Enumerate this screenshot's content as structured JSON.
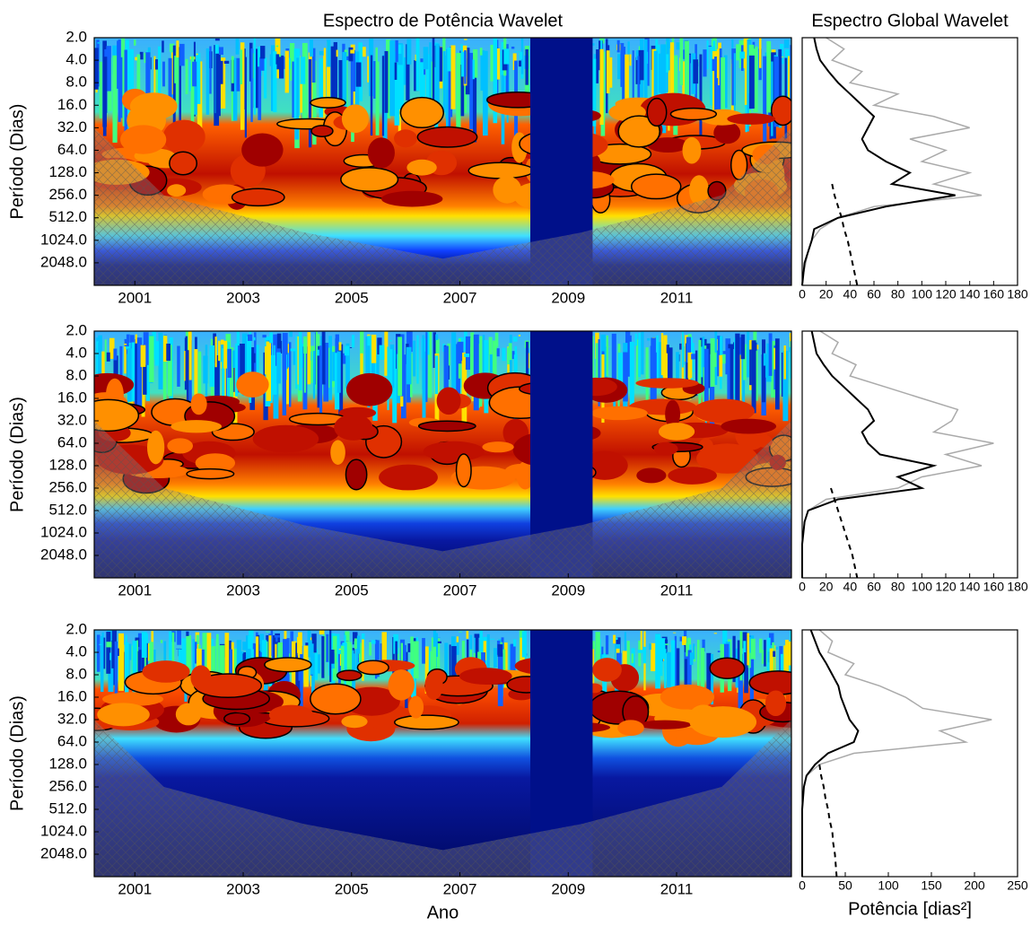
{
  "chart_data": [
    {
      "type": "wavelet",
      "title": "Espectro de Potência Wavelet",
      "ylabel": "Período (Dias)",
      "xlim": [
        2000.25,
        2013.12
      ],
      "xticks": [
        2001,
        2003,
        2005,
        2007,
        2009,
        2011
      ],
      "ylim": [
        2,
        4096
      ],
      "yticks": [
        {
          "value": 2,
          "label": "2.0"
        },
        {
          "value": 4,
          "label": "4.0"
        },
        {
          "value": 8,
          "label": "8.0"
        },
        {
          "value": 16,
          "label": "16.0"
        },
        {
          "value": 32,
          "label": "32.0"
        },
        {
          "value": 64,
          "label": "64.0"
        },
        {
          "value": 128,
          "label": "128.0"
        },
        {
          "value": 256,
          "label": "256.0"
        },
        {
          "value": 512,
          "label": "512.0"
        },
        {
          "value": 1024,
          "label": "1024.0"
        },
        {
          "value": 2048,
          "label": "2048.0"
        }
      ]
    },
    {
      "type": "global",
      "title": "Espectro Global Wavelet",
      "xlim": [
        0,
        180
      ],
      "xticks": [
        0,
        20,
        40,
        60,
        80,
        100,
        120,
        140,
        160,
        180
      ],
      "ylim": [
        2,
        4096
      ],
      "y": [
        2,
        2.83,
        4,
        5.66,
        8,
        11.3,
        16,
        22.6,
        32,
        45.3,
        64,
        90.5,
        128,
        181,
        256,
        362,
        512,
        724,
        1024,
        1448,
        2048,
        2896,
        4096
      ],
      "series": [
        {
          "color": "#aaaaaa",
          "values": [
            20,
            35,
            25,
            50,
            40,
            80,
            60,
            110,
            140,
            90,
            120,
            100,
            140,
            110,
            150,
            60,
            30,
            15,
            8,
            5,
            3,
            1,
            0
          ]
        },
        {
          "color": "#000000",
          "values": [
            10,
            12,
            15,
            22,
            30,
            40,
            50,
            60,
            55,
            50,
            55,
            70,
            90,
            75,
            128,
            70,
            30,
            10,
            8,
            5,
            2,
            1,
            0
          ]
        },
        {
          "color": "#000000",
          "dashed": true,
          "values": [
            null,
            null,
            null,
            null,
            null,
            null,
            null,
            null,
            null,
            null,
            null,
            null,
            null,
            25,
            27,
            30,
            33,
            35,
            38,
            40,
            42,
            44,
            46
          ]
        }
      ]
    },
    {
      "type": "wavelet",
      "ylabel": "Período (Dias)",
      "xlim": [
        2000.25,
        2013.12
      ],
      "xticks": [
        2001,
        2003,
        2005,
        2007,
        2009,
        2011
      ],
      "ylim": [
        2,
        4096
      ],
      "yticks": [
        {
          "value": 2,
          "label": "2.0"
        },
        {
          "value": 4,
          "label": "4.0"
        },
        {
          "value": 8,
          "label": "8.0"
        },
        {
          "value": 16,
          "label": "16.0"
        },
        {
          "value": 32,
          "label": "32.0"
        },
        {
          "value": 64,
          "label": "64.0"
        },
        {
          "value": 128,
          "label": "128.0"
        },
        {
          "value": 256,
          "label": "256.0"
        },
        {
          "value": 512,
          "label": "512.0"
        },
        {
          "value": 1024,
          "label": "1024.0"
        },
        {
          "value": 2048,
          "label": "2048.0"
        }
      ]
    },
    {
      "type": "global",
      "xlim": [
        0,
        180
      ],
      "xticks": [
        0,
        20,
        40,
        60,
        80,
        100,
        120,
        140,
        160,
        180
      ],
      "ylim": [
        2,
        4096
      ],
      "y": [
        2,
        2.83,
        4,
        5.66,
        8,
        11.3,
        16,
        22.6,
        32,
        45.3,
        64,
        90.5,
        128,
        181,
        256,
        362,
        512,
        724,
        1024,
        1448,
        2048,
        2896,
        4096
      ],
      "series": [
        {
          "color": "#aaaaaa",
          "values": [
            15,
            30,
            25,
            45,
            40,
            70,
            100,
            130,
            125,
            110,
            160,
            120,
            150,
            100,
            80,
            20,
            5,
            2,
            1,
            0,
            0,
            0,
            0
          ]
        },
        {
          "color": "#000000",
          "values": [
            8,
            10,
            12,
            18,
            25,
            35,
            45,
            55,
            60,
            50,
            55,
            65,
            110,
            80,
            100,
            30,
            5,
            2,
            1,
            0,
            0,
            0,
            0
          ]
        },
        {
          "color": "#000000",
          "dashed": true,
          "values": [
            null,
            null,
            null,
            null,
            null,
            null,
            null,
            null,
            null,
            null,
            null,
            null,
            null,
            null,
            24,
            27,
            30,
            33,
            36,
            39,
            42,
            44,
            46
          ]
        }
      ]
    },
    {
      "type": "wavelet",
      "ylabel": "Período (Dias)",
      "xlabel": "Ano",
      "xlim": [
        2000.25,
        2013.12
      ],
      "xticks": [
        2001,
        2003,
        2005,
        2007,
        2009,
        2011
      ],
      "ylim": [
        2,
        4096
      ],
      "yticks": [
        {
          "value": 2,
          "label": "2.0"
        },
        {
          "value": 4,
          "label": "4.0"
        },
        {
          "value": 8,
          "label": "8.0"
        },
        {
          "value": 16,
          "label": "16.0"
        },
        {
          "value": 32,
          "label": "32.0"
        },
        {
          "value": 64,
          "label": "64.0"
        },
        {
          "value": 128,
          "label": "128.0"
        },
        {
          "value": 256,
          "label": "256.0"
        },
        {
          "value": 512,
          "label": "512.0"
        },
        {
          "value": 1024,
          "label": "1024.0"
        },
        {
          "value": 2048,
          "label": "2048.0"
        }
      ]
    },
    {
      "type": "global",
      "xlabel": "Potência [dias²]",
      "xlim": [
        0,
        250
      ],
      "xticks": [
        0,
        50,
        100,
        150,
        200,
        250
      ],
      "ylim": [
        2,
        4096
      ],
      "y": [
        2,
        2.83,
        4,
        5.66,
        8,
        11.3,
        16,
        22.6,
        32,
        45.3,
        64,
        90.5,
        128,
        181,
        256,
        362,
        512,
        724,
        1024,
        1448,
        2048,
        2896,
        4096
      ],
      "series": [
        {
          "color": "#aaaaaa",
          "values": [
            20,
            35,
            30,
            60,
            50,
            90,
            120,
            140,
            220,
            160,
            190,
            60,
            20,
            5,
            2,
            1,
            0,
            0,
            0,
            0,
            0,
            0,
            0
          ]
        },
        {
          "color": "#000000",
          "values": [
            10,
            15,
            20,
            28,
            35,
            42,
            45,
            50,
            55,
            65,
            60,
            30,
            15,
            5,
            2,
            1,
            0,
            0,
            0,
            0,
            0,
            0,
            0
          ]
        },
        {
          "color": "#000000",
          "dashed": true,
          "values": [
            null,
            null,
            null,
            null,
            null,
            null,
            null,
            null,
            null,
            null,
            null,
            null,
            20,
            22,
            25,
            27,
            30,
            32,
            35,
            36,
            38,
            39,
            40
          ]
        }
      ]
    }
  ]
}
